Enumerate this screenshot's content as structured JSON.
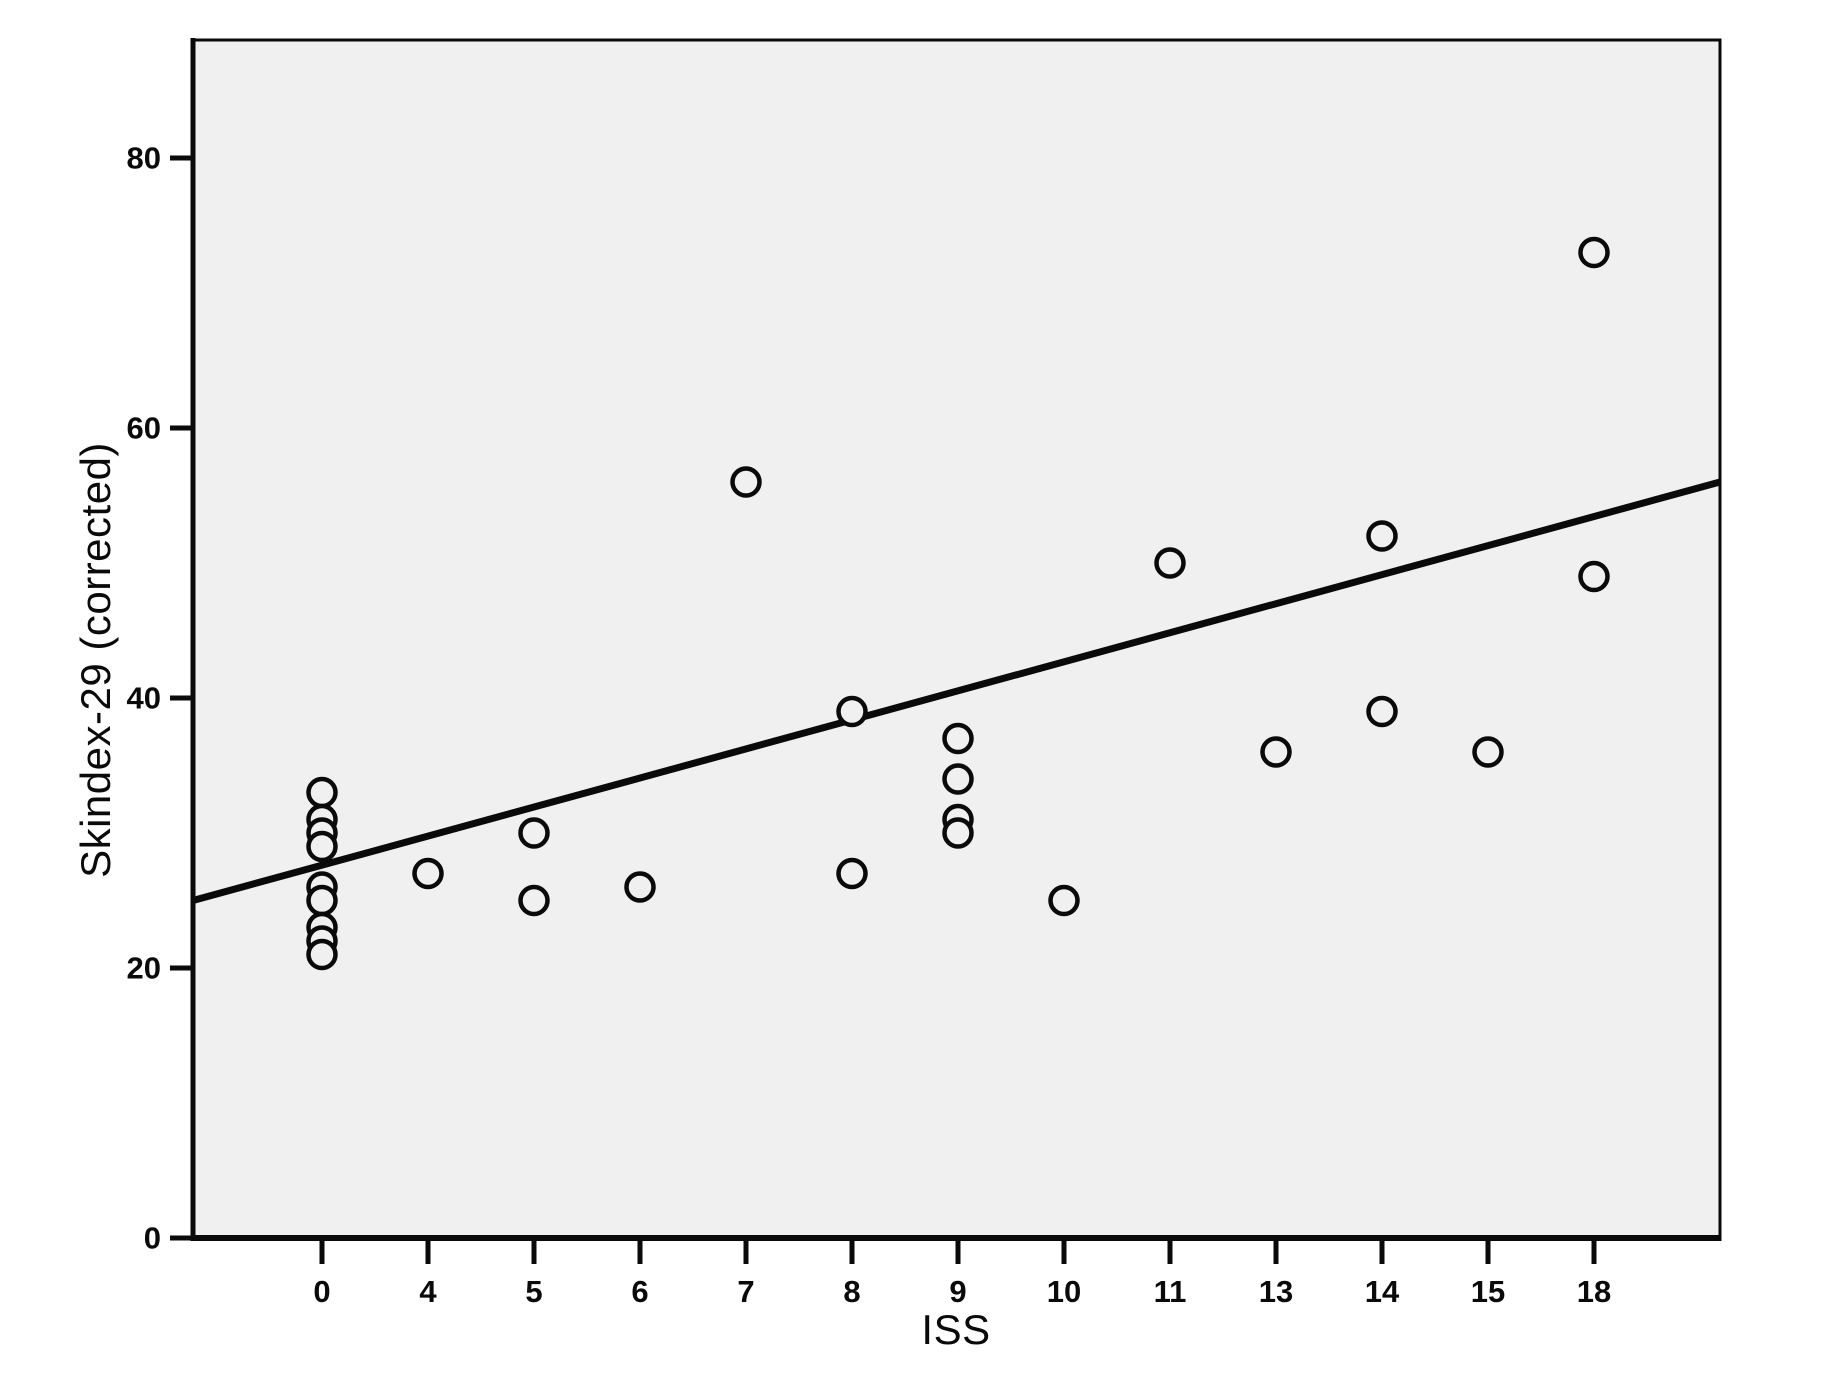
{
  "figure": {
    "colors": {
      "ink": "#0a0a0a",
      "plot_background": "#f0f0f0",
      "figure_background": "#ffffff"
    },
    "marker_shape": "open-circle"
  },
  "chart_data": {
    "type": "scatter",
    "title": "",
    "xlabel": "ISS",
    "ylabel": "Skindex-29 (corrected)",
    "x_axis_type": "categorical-equal-spacing",
    "x_ticks": [
      0,
      4,
      5,
      6,
      7,
      8,
      9,
      10,
      11,
      13,
      14,
      15,
      18
    ],
    "y_ticks": [
      0,
      20,
      40,
      60,
      80
    ],
    "ylim": [
      0,
      88.7
    ],
    "grid": false,
    "legend": false,
    "points": [
      {
        "x": 0,
        "y": 33
      },
      {
        "x": 0,
        "y": 31
      },
      {
        "x": 0,
        "y": 30
      },
      {
        "x": 0,
        "y": 29
      },
      {
        "x": 0,
        "y": 26
      },
      {
        "x": 0,
        "y": 25
      },
      {
        "x": 0,
        "y": 23
      },
      {
        "x": 0,
        "y": 22
      },
      {
        "x": 0,
        "y": 21
      },
      {
        "x": 4,
        "y": 27
      },
      {
        "x": 5,
        "y": 30
      },
      {
        "x": 5,
        "y": 25
      },
      {
        "x": 6,
        "y": 26
      },
      {
        "x": 7,
        "y": 56
      },
      {
        "x": 8,
        "y": 39
      },
      {
        "x": 8,
        "y": 27
      },
      {
        "x": 9,
        "y": 37
      },
      {
        "x": 9,
        "y": 34
      },
      {
        "x": 9,
        "y": 31
      },
      {
        "x": 9,
        "y": 30
      },
      {
        "x": 10,
        "y": 25
      },
      {
        "x": 11,
        "y": 50
      },
      {
        "x": 13,
        "y": 36
      },
      {
        "x": 14,
        "y": 52
      },
      {
        "x": 14,
        "y": 39
      },
      {
        "x": 15,
        "y": 36
      },
      {
        "x": 18,
        "y": 73
      },
      {
        "x": 18,
        "y": 49
      }
    ],
    "fit_line": {
      "y_at_left_edge": 25,
      "y_at_right_edge": 56
    }
  }
}
